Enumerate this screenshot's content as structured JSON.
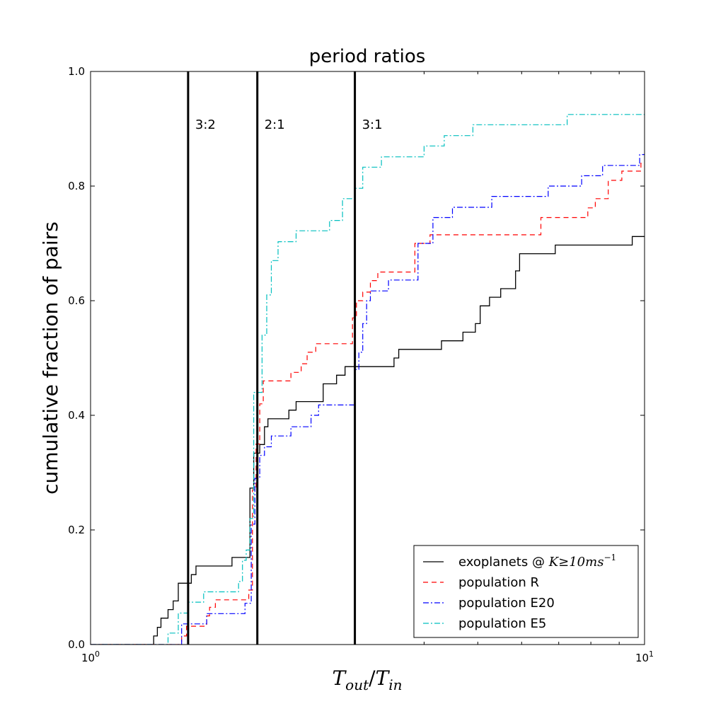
{
  "chart_data": {
    "type": "step",
    "title": "period ratios",
    "xlabel": "T_out/T_in",
    "xlabel_parts": {
      "base1": "T",
      "sub1": "out",
      "sep": "/",
      "base2": "T",
      "sub2": "in"
    },
    "ylabel": "cumulative fraction of pairs",
    "xscale": "log",
    "xlim": [
      1,
      10
    ],
    "ylim": [
      0.0,
      1.0
    ],
    "x_ticks": [
      {
        "value": 1,
        "base": "10",
        "exp": "0"
      },
      {
        "value": 10,
        "base": "10",
        "exp": "1"
      }
    ],
    "y_ticks": [
      "0.0",
      "0.2",
      "0.4",
      "0.6",
      "0.8",
      "1.0"
    ],
    "resonances": [
      {
        "label": "3:2",
        "x": 1.5
      },
      {
        "label": "2:1",
        "x": 2.0
      },
      {
        "label": "3:1",
        "x": 3.0
      }
    ],
    "series": [
      {
        "name": "exoplanets",
        "legend": {
          "text": "exoplanets @ ",
          "math_base": "K",
          "math_rel": "≥",
          "math_num": "10ms",
          "math_sup": "−1"
        },
        "color": "#000000",
        "dash": "",
        "points": [
          [
            1.0,
            0.0
          ],
          [
            1.3,
            0.0
          ],
          [
            1.3,
            0.015
          ],
          [
            1.32,
            0.015
          ],
          [
            1.32,
            0.03
          ],
          [
            1.34,
            0.03
          ],
          [
            1.34,
            0.046
          ],
          [
            1.38,
            0.046
          ],
          [
            1.38,
            0.061
          ],
          [
            1.41,
            0.061
          ],
          [
            1.41,
            0.076
          ],
          [
            1.44,
            0.076
          ],
          [
            1.44,
            0.107
          ],
          [
            1.52,
            0.107
          ],
          [
            1.52,
            0.122
          ],
          [
            1.55,
            0.122
          ],
          [
            1.55,
            0.137
          ],
          [
            1.8,
            0.137
          ],
          [
            1.8,
            0.152
          ],
          [
            1.94,
            0.152
          ],
          [
            1.94,
            0.273
          ],
          [
            1.97,
            0.273
          ],
          [
            1.97,
            0.334
          ],
          [
            2.02,
            0.334
          ],
          [
            2.02,
            0.349
          ],
          [
            2.06,
            0.349
          ],
          [
            2.06,
            0.38
          ],
          [
            2.09,
            0.38
          ],
          [
            2.09,
            0.394
          ],
          [
            2.28,
            0.394
          ],
          [
            2.28,
            0.409
          ],
          [
            2.35,
            0.409
          ],
          [
            2.35,
            0.424
          ],
          [
            2.63,
            0.424
          ],
          [
            2.63,
            0.455
          ],
          [
            2.78,
            0.455
          ],
          [
            2.78,
            0.47
          ],
          [
            2.88,
            0.47
          ],
          [
            2.88,
            0.485
          ],
          [
            3.53,
            0.485
          ],
          [
            3.53,
            0.5
          ],
          [
            3.6,
            0.5
          ],
          [
            3.6,
            0.515
          ],
          [
            4.3,
            0.515
          ],
          [
            4.3,
            0.53
          ],
          [
            4.7,
            0.53
          ],
          [
            4.7,
            0.545
          ],
          [
            4.95,
            0.545
          ],
          [
            4.95,
            0.56
          ],
          [
            5.05,
            0.56
          ],
          [
            5.05,
            0.591
          ],
          [
            5.25,
            0.591
          ],
          [
            5.25,
            0.606
          ],
          [
            5.5,
            0.606
          ],
          [
            5.5,
            0.621
          ],
          [
            5.85,
            0.621
          ],
          [
            5.85,
            0.652
          ],
          [
            5.95,
            0.652
          ],
          [
            5.95,
            0.682
          ],
          [
            6.9,
            0.682
          ],
          [
            6.9,
            0.697
          ],
          [
            9.5,
            0.697
          ],
          [
            9.5,
            0.712
          ],
          [
            10.0,
            0.712
          ]
        ]
      },
      {
        "name": "population R",
        "legend": {
          "text": "population R"
        },
        "color": "#ff0000",
        "dash": "7,5",
        "points": [
          [
            1.0,
            0.0
          ],
          [
            1.46,
            0.0
          ],
          [
            1.46,
            0.015
          ],
          [
            1.49,
            0.015
          ],
          [
            1.49,
            0.032
          ],
          [
            1.62,
            0.032
          ],
          [
            1.62,
            0.05
          ],
          [
            1.64,
            0.05
          ],
          [
            1.64,
            0.065
          ],
          [
            1.68,
            0.065
          ],
          [
            1.68,
            0.078
          ],
          [
            1.93,
            0.078
          ],
          [
            1.93,
            0.095
          ],
          [
            1.96,
            0.095
          ],
          [
            1.96,
            0.27
          ],
          [
            1.99,
            0.27
          ],
          [
            1.99,
            0.35
          ],
          [
            2.02,
            0.35
          ],
          [
            2.02,
            0.42
          ],
          [
            2.05,
            0.42
          ],
          [
            2.05,
            0.46
          ],
          [
            2.3,
            0.46
          ],
          [
            2.3,
            0.475
          ],
          [
            2.4,
            0.475
          ],
          [
            2.4,
            0.49
          ],
          [
            2.46,
            0.49
          ],
          [
            2.46,
            0.51
          ],
          [
            2.55,
            0.51
          ],
          [
            2.55,
            0.525
          ],
          [
            2.97,
            0.525
          ],
          [
            2.97,
            0.57
          ],
          [
            3.02,
            0.57
          ],
          [
            3.02,
            0.6
          ],
          [
            3.1,
            0.6
          ],
          [
            3.1,
            0.615
          ],
          [
            3.2,
            0.615
          ],
          [
            3.2,
            0.635
          ],
          [
            3.3,
            0.635
          ],
          [
            3.3,
            0.65
          ],
          [
            3.85,
            0.65
          ],
          [
            3.85,
            0.7
          ],
          [
            4.1,
            0.7
          ],
          [
            4.1,
            0.715
          ],
          [
            6.5,
            0.715
          ],
          [
            6.5,
            0.745
          ],
          [
            7.9,
            0.745
          ],
          [
            7.9,
            0.762
          ],
          [
            8.15,
            0.762
          ],
          [
            8.15,
            0.778
          ],
          [
            8.6,
            0.778
          ],
          [
            8.6,
            0.81
          ],
          [
            9.1,
            0.81
          ],
          [
            9.1,
            0.826
          ],
          [
            9.85,
            0.826
          ],
          [
            9.85,
            0.84
          ],
          [
            10.0,
            0.84
          ]
        ]
      },
      {
        "name": "population E20",
        "legend": {
          "text": "population E20"
        },
        "color": "#0000ff",
        "dash": "8,3,2,3",
        "points": [
          [
            1.0,
            0.0
          ],
          [
            1.46,
            0.0
          ],
          [
            1.46,
            0.036
          ],
          [
            1.62,
            0.036
          ],
          [
            1.62,
            0.054
          ],
          [
            1.9,
            0.054
          ],
          [
            1.9,
            0.072
          ],
          [
            1.95,
            0.072
          ],
          [
            1.95,
            0.21
          ],
          [
            1.98,
            0.21
          ],
          [
            1.98,
            0.29
          ],
          [
            2.02,
            0.29
          ],
          [
            2.02,
            0.33
          ],
          [
            2.06,
            0.33
          ],
          [
            2.06,
            0.345
          ],
          [
            2.12,
            0.345
          ],
          [
            2.12,
            0.364
          ],
          [
            2.3,
            0.364
          ],
          [
            2.3,
            0.38
          ],
          [
            2.5,
            0.38
          ],
          [
            2.5,
            0.4
          ],
          [
            2.58,
            0.4
          ],
          [
            2.58,
            0.418
          ],
          [
            3.0,
            0.418
          ],
          [
            3.0,
            0.48
          ],
          [
            3.05,
            0.48
          ],
          [
            3.05,
            0.51
          ],
          [
            3.1,
            0.51
          ],
          [
            3.1,
            0.56
          ],
          [
            3.15,
            0.56
          ],
          [
            3.15,
            0.6
          ],
          [
            3.2,
            0.6
          ],
          [
            3.2,
            0.617
          ],
          [
            3.45,
            0.617
          ],
          [
            3.45,
            0.636
          ],
          [
            3.9,
            0.636
          ],
          [
            3.9,
            0.7
          ],
          [
            4.15,
            0.7
          ],
          [
            4.15,
            0.745
          ],
          [
            4.5,
            0.745
          ],
          [
            4.5,
            0.763
          ],
          [
            5.3,
            0.763
          ],
          [
            5.3,
            0.782
          ],
          [
            6.7,
            0.782
          ],
          [
            6.7,
            0.8
          ],
          [
            7.7,
            0.8
          ],
          [
            7.7,
            0.818
          ],
          [
            8.4,
            0.818
          ],
          [
            8.4,
            0.836
          ],
          [
            9.8,
            0.836
          ],
          [
            9.8,
            0.855
          ],
          [
            10.0,
            0.855
          ]
        ]
      },
      {
        "name": "population E5",
        "legend": {
          "text": "population E5"
        },
        "color": "#00bfbf",
        "dash": "8,3,2,3",
        "points": [
          [
            1.0,
            0.0
          ],
          [
            1.38,
            0.0
          ],
          [
            1.38,
            0.02
          ],
          [
            1.44,
            0.02
          ],
          [
            1.44,
            0.055
          ],
          [
            1.5,
            0.055
          ],
          [
            1.5,
            0.074
          ],
          [
            1.6,
            0.074
          ],
          [
            1.6,
            0.092
          ],
          [
            1.85,
            0.092
          ],
          [
            1.85,
            0.11
          ],
          [
            1.88,
            0.11
          ],
          [
            1.88,
            0.147
          ],
          [
            1.91,
            0.147
          ],
          [
            1.91,
            0.165
          ],
          [
            1.94,
            0.165
          ],
          [
            1.94,
            0.22
          ],
          [
            1.97,
            0.22
          ],
          [
            1.97,
            0.44
          ],
          [
            2.04,
            0.44
          ],
          [
            2.04,
            0.54
          ],
          [
            2.08,
            0.54
          ],
          [
            2.08,
            0.61
          ],
          [
            2.12,
            0.61
          ],
          [
            2.12,
            0.67
          ],
          [
            2.18,
            0.67
          ],
          [
            2.18,
            0.703
          ],
          [
            2.35,
            0.703
          ],
          [
            2.35,
            0.722
          ],
          [
            2.7,
            0.722
          ],
          [
            2.7,
            0.74
          ],
          [
            2.85,
            0.74
          ],
          [
            2.85,
            0.778
          ],
          [
            3.0,
            0.778
          ],
          [
            3.0,
            0.796
          ],
          [
            3.1,
            0.796
          ],
          [
            3.1,
            0.833
          ],
          [
            3.35,
            0.833
          ],
          [
            3.35,
            0.851
          ],
          [
            4.0,
            0.851
          ],
          [
            4.0,
            0.87
          ],
          [
            4.35,
            0.87
          ],
          [
            4.35,
            0.888
          ],
          [
            4.9,
            0.888
          ],
          [
            4.9,
            0.907
          ],
          [
            7.25,
            0.907
          ],
          [
            7.25,
            0.925
          ],
          [
            10.0,
            0.925
          ]
        ]
      }
    ]
  }
}
